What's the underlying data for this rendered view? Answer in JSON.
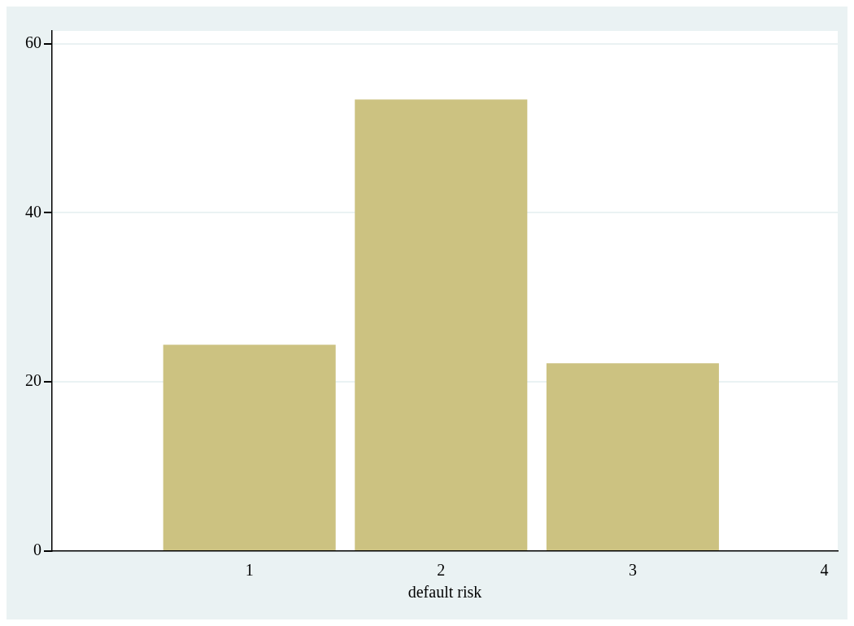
{
  "chart_data": {
    "type": "bar",
    "xlabel": "default risk",
    "x": [
      1,
      2,
      3
    ],
    "values": [
      24.4,
      53.4,
      22.2
    ],
    "color": "#ccc281",
    "xlim": [
      -0.03,
      4.07
    ],
    "xticks": [
      1,
      2,
      3,
      4
    ],
    "ylim": [
      0,
      61.5
    ],
    "yticks": [
      0,
      20,
      40,
      60
    ],
    "grid": "y"
  }
}
